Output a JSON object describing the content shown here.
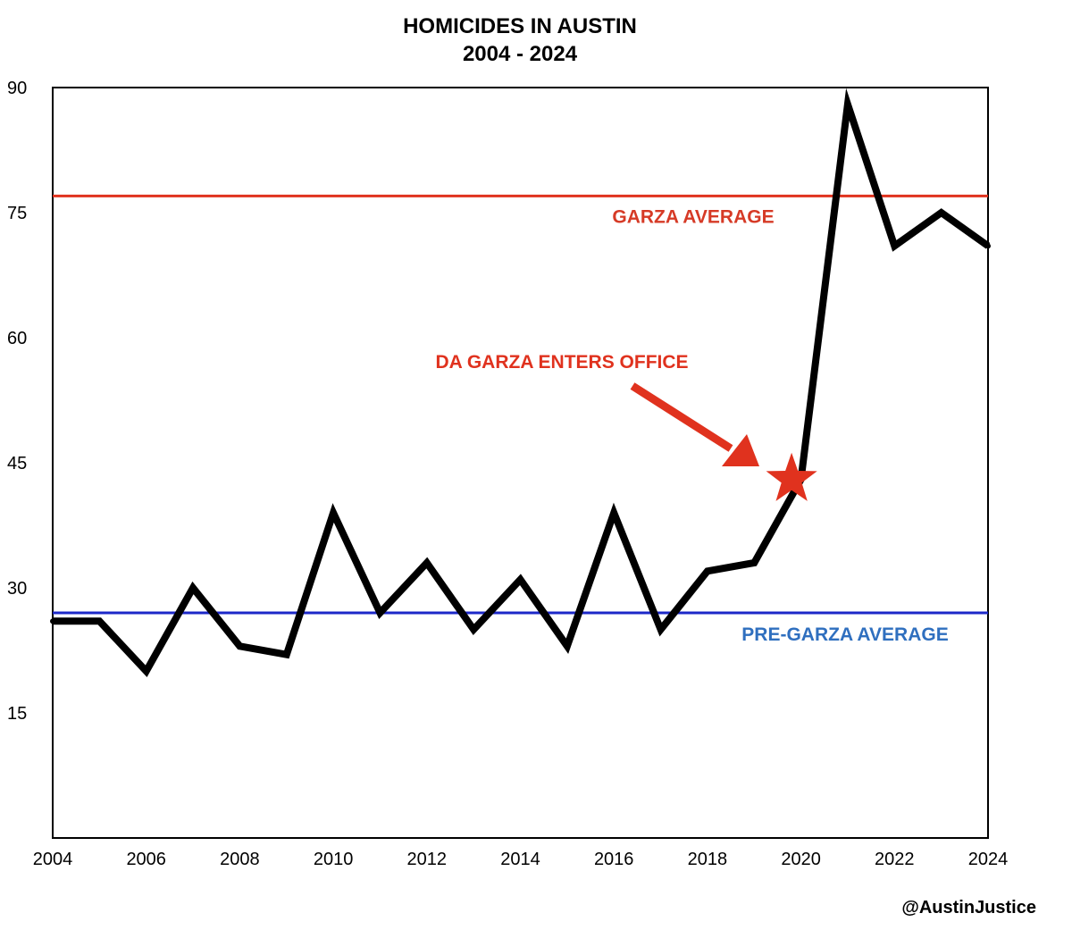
{
  "chart_data": {
    "type": "line",
    "title": "HOMICIDES IN AUSTIN",
    "subtitle": "2004 - 2024",
    "xlabel": "",
    "ylabel": "",
    "xlim": [
      2004,
      2024
    ],
    "ylim": [
      0,
      90
    ],
    "grid": false,
    "x_ticks": [
      "2004",
      "2006",
      "2008",
      "2010",
      "2012",
      "2014",
      "2016",
      "2018",
      "2020",
      "2022",
      "2024"
    ],
    "y_ticks": [
      "15",
      "30",
      "45",
      "60",
      "75",
      "90"
    ],
    "x": [
      2004,
      2005,
      2006,
      2007,
      2008,
      2009,
      2010,
      2011,
      2012,
      2013,
      2014,
      2015,
      2016,
      2017,
      2018,
      2019,
      2020,
      2021,
      2022,
      2023,
      2024
    ],
    "series": [
      {
        "values": [
          26,
          26,
          20,
          30,
          23,
          22,
          39,
          27,
          33,
          25,
          31,
          23,
          39,
          25,
          32,
          33,
          43,
          88,
          71,
          75,
          71
        ],
        "color": "#000000"
      }
    ],
    "reference_lines": [
      {
        "label": "GARZA AVERAGE",
        "value": 77,
        "color": "#e0321e",
        "text_color": "#d63a26"
      },
      {
        "label": "PRE-GARZA AVERAGE",
        "value": 27,
        "color": "#1c28c8",
        "text_color": "#2f6fbf"
      }
    ],
    "annotation": {
      "text": "DA GARZA ENTERS OFFICE",
      "color": "#e0321e",
      "marker_x": 2019.8,
      "marker_y": 43
    },
    "credit": "@AustinJustice"
  }
}
